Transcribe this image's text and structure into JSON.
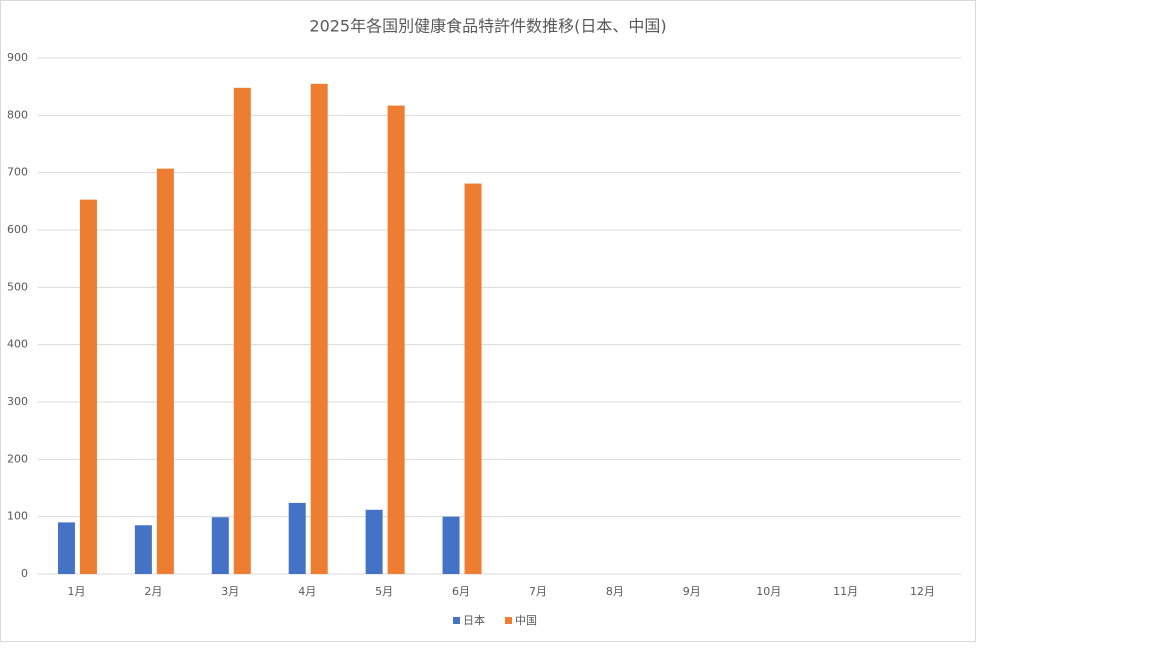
{
  "chart_data": {
    "type": "bar",
    "title": "2025年各国別健康食品特許件数推移(日本、中国)",
    "categories": [
      "1月",
      "2月",
      "3月",
      "4月",
      "5月",
      "6月",
      "7月",
      "8月",
      "9月",
      "10月",
      "11月",
      "12月"
    ],
    "series": [
      {
        "name": "日本",
        "color": "#4472c4",
        "values": [
          90,
          85,
          99,
          124,
          112,
          100,
          null,
          null,
          null,
          null,
          null,
          null
        ]
      },
      {
        "name": "中国",
        "color": "#ed7d31",
        "values": [
          653,
          707,
          848,
          855,
          817,
          681,
          null,
          null,
          null,
          null,
          null,
          null
        ]
      }
    ],
    "ylim": [
      0,
      900
    ],
    "yticks": [
      0,
      100,
      200,
      300,
      400,
      500,
      600,
      700,
      800,
      900
    ],
    "grid": true,
    "legend": "bottom"
  }
}
